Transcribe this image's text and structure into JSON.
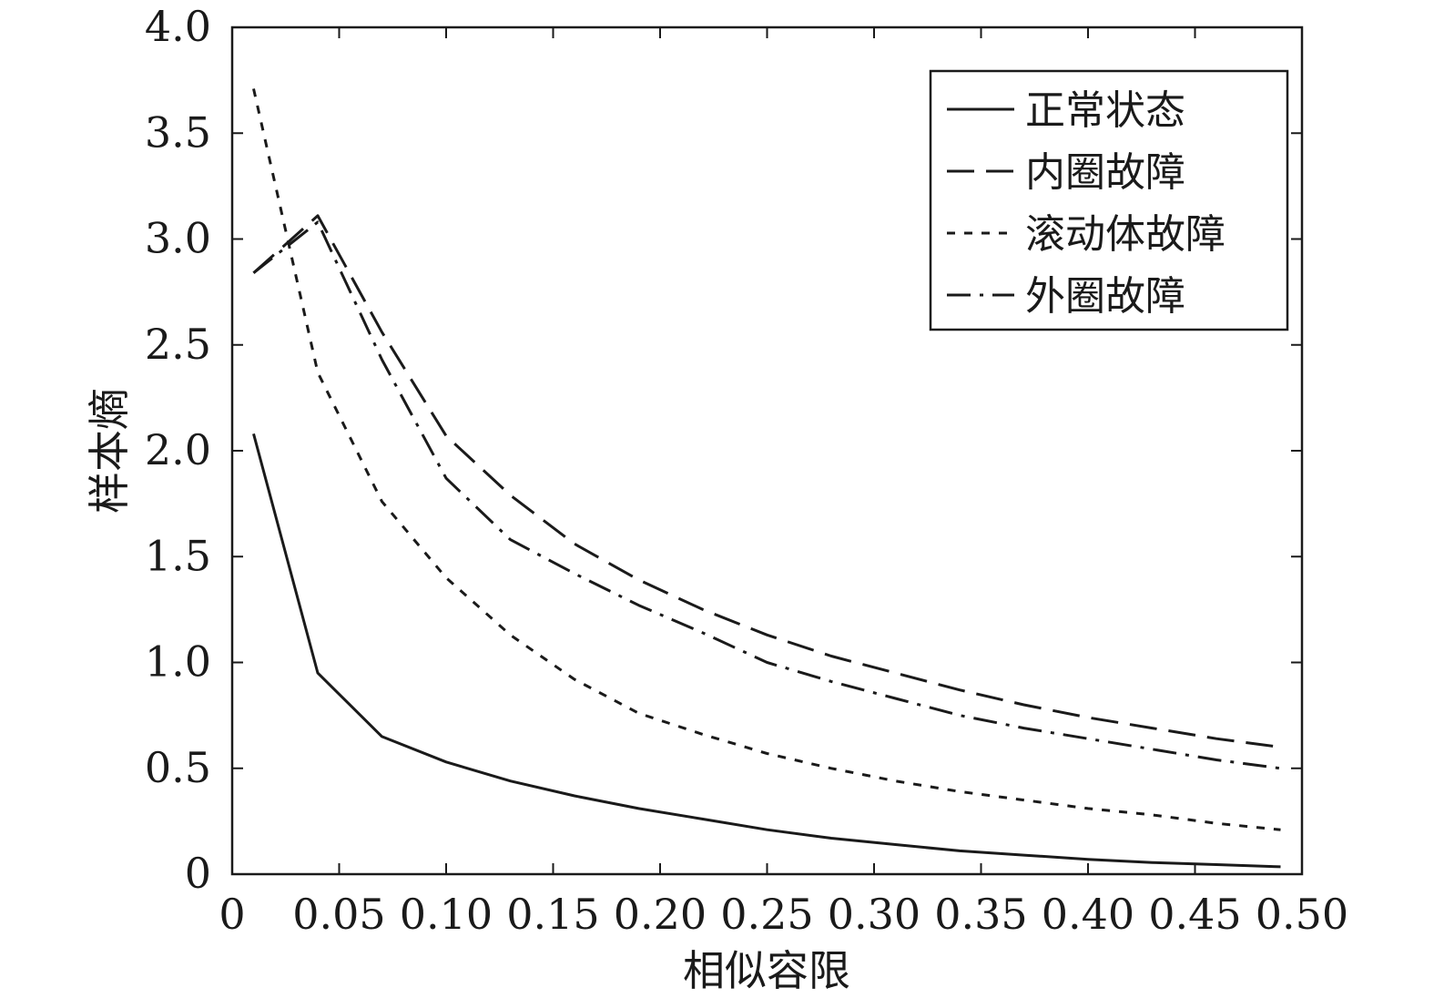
{
  "chart_data": {
    "type": "line",
    "xlabel": "相似容限",
    "ylabel": "样本熵",
    "xlim": [
      0,
      0.5
    ],
    "ylim": [
      0,
      4.0
    ],
    "xticks": [
      0,
      0.05,
      0.1,
      0.15,
      0.2,
      0.25,
      0.3,
      0.35,
      0.4,
      0.45,
      0.5
    ],
    "xtick_labels": [
      "0",
      "0.05",
      "0.10",
      "0.15",
      "0.20",
      "0.25",
      "0.30",
      "0.35",
      "0.40",
      "0.45",
      "0.50"
    ],
    "yticks": [
      0,
      0.5,
      1.0,
      1.5,
      2.0,
      2.5,
      3.0,
      3.5,
      4.0
    ],
    "ytick_labels": [
      "0",
      "0.5",
      "1.0",
      "1.5",
      "2.0",
      "2.5",
      "3.0",
      "3.5",
      "4.0"
    ],
    "grid": false,
    "legend_position": "top-right",
    "line_color": "#1a1a1a",
    "x": [
      0.01,
      0.04,
      0.07,
      0.1,
      0.13,
      0.16,
      0.19,
      0.22,
      0.25,
      0.28,
      0.31,
      0.34,
      0.37,
      0.4,
      0.43,
      0.46,
      0.49
    ],
    "series": [
      {
        "name": "正常状态",
        "style": "solid",
        "values": [
          2.08,
          0.95,
          0.65,
          0.53,
          0.44,
          0.37,
          0.31,
          0.26,
          0.21,
          0.17,
          0.14,
          0.11,
          0.09,
          0.07,
          0.055,
          0.045,
          0.035
        ]
      },
      {
        "name": "内圈故障",
        "style": "dashed",
        "values": [
          2.84,
          3.11,
          2.56,
          2.07,
          1.79,
          1.56,
          1.39,
          1.25,
          1.13,
          1.03,
          0.95,
          0.87,
          0.8,
          0.74,
          0.69,
          0.64,
          0.6
        ]
      },
      {
        "name": "滚动体故障",
        "style": "dotted",
        "values": [
          3.71,
          2.37,
          1.76,
          1.4,
          1.13,
          0.92,
          0.76,
          0.66,
          0.57,
          0.5,
          0.44,
          0.39,
          0.35,
          0.31,
          0.28,
          0.24,
          0.21
        ]
      },
      {
        "name": "外圈故障",
        "style": "dashdot",
        "values": [
          2.84,
          3.08,
          2.43,
          1.87,
          1.58,
          1.42,
          1.27,
          1.14,
          1.0,
          0.91,
          0.83,
          0.75,
          0.69,
          0.64,
          0.59,
          0.54,
          0.5
        ]
      }
    ]
  }
}
